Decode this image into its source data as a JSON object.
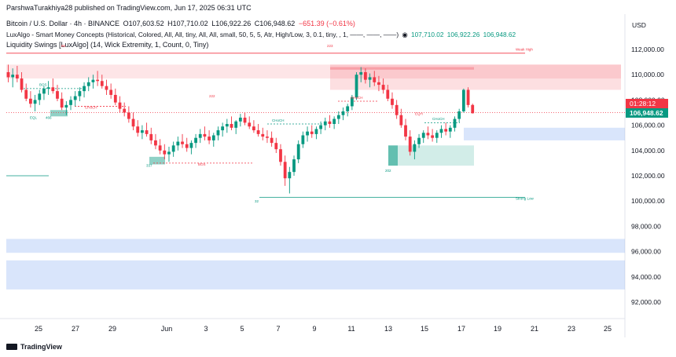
{
  "header": {
    "published": "ParshwaTurakhiya28 published on TradingView.com, Jun 17, 2025 06:31 UTC",
    "symbol": "Bitcoin / U.S. Dollar · 4h · BINANCE",
    "open": "O107,603.52",
    "high": "H107,710.02",
    "low": "L106,922.26",
    "close": "C106,948.62",
    "change": "−651.39 (−0.61%)",
    "indicator1": "LuxAlgo - Smart Money Concepts (Historical, Colored, All, All, tiny, All, All, small, 50, 5, 5, Atr, High/Low, 3, 0.1, tiny, , 1, ——, ——, ——)",
    "indicator1_icon": "eye-off-icon",
    "indicator1_values": [
      "107,710.02",
      "106,922.26",
      "106,948.62"
    ],
    "indicator2": "Liquidity Swings [LuxAlgo] (14, Wick Extremity, 1, Count, 0, Tiny)"
  },
  "price_axis": {
    "currency": "USD",
    "ticks": [
      "112,000.00",
      "110,000.00",
      "108,000.00",
      "106,000.00",
      "104,000.00",
      "102,000.00",
      "100,000.00",
      "98,000.00",
      "96,000.00",
      "94,000.00",
      "92,000.00"
    ],
    "countdown": "01:28:12",
    "last_price": "106,948.62",
    "colors": {
      "countdown": "#f23645",
      "last_price": "#089981"
    }
  },
  "time_axis": {
    "ticks": [
      "25",
      "27",
      "29",
      "Jun",
      "3",
      "5",
      "7",
      "9",
      "11",
      "13",
      "15",
      "17",
      "19",
      "21",
      "23",
      "25"
    ]
  },
  "branding": {
    "logo_text": "TradingView",
    "logo_icon": "tradingview-logo-icon"
  },
  "annotations": [
    {
      "text": "Weak High",
      "color": "#f23645"
    },
    {
      "text": "Strong Low",
      "color": "#089981"
    },
    {
      "text": "BOS",
      "color": "#089981"
    },
    {
      "text": "BOS",
      "color": "#f23645"
    },
    {
      "text": "CHoCH",
      "color": "#f23645"
    },
    {
      "text": "CHoCH",
      "color": "#089981"
    },
    {
      "text": "CHoCH",
      "color": "#f23645"
    },
    {
      "text": "CHoCH",
      "color": "#089981"
    },
    {
      "text": "EQL",
      "color": "#089981"
    },
    {
      "text": "466",
      "color": "#089981"
    },
    {
      "text": "85",
      "color": "#f23645"
    },
    {
      "text": "337",
      "color": "#089981"
    },
    {
      "text": "222",
      "color": "#f23645"
    },
    {
      "text": "223",
      "color": "#f23645"
    },
    {
      "text": "32",
      "color": "#089981"
    },
    {
      "text": "202",
      "color": "#089981"
    },
    {
      "text": "EQH",
      "color": "#f23645"
    }
  ],
  "chart_data": {
    "type": "candlestick",
    "symbol": "BTCUSD",
    "interval": "4h",
    "ylim": [
      90800,
      113200
    ],
    "x_ticks": [
      "25",
      "27",
      "29",
      "Jun",
      "3",
      "5",
      "7",
      "9",
      "11",
      "13",
      "15",
      "17",
      "19",
      "21",
      "23",
      "25"
    ],
    "colors": {
      "up": "#089981",
      "down": "#f23645"
    },
    "candles": [
      [
        110200,
        110800,
        109400,
        109800
      ],
      [
        109800,
        110500,
        109000,
        110000
      ],
      [
        110000,
        110700,
        109400,
        109700
      ],
      [
        109700,
        110200,
        108600,
        108800
      ],
      [
        108800,
        109300,
        107900,
        108100
      ],
      [
        108100,
        108700,
        107400,
        107700
      ],
      [
        107700,
        108400,
        107100,
        108000
      ],
      [
        108000,
        108800,
        107600,
        108500
      ],
      [
        108500,
        109100,
        108000,
        108900
      ],
      [
        108900,
        109500,
        108400,
        109000
      ],
      [
        109000,
        109700,
        108500,
        108700
      ],
      [
        108700,
        109200,
        107900,
        108100
      ],
      [
        108100,
        108600,
        107200,
        107400
      ],
      [
        107400,
        107900,
        106800,
        107600
      ],
      [
        107600,
        108300,
        107200,
        108000
      ],
      [
        108000,
        108700,
        107500,
        108300
      ],
      [
        108300,
        109000,
        107900,
        108700
      ],
      [
        108700,
        109400,
        108200,
        109100
      ],
      [
        109100,
        109800,
        108700,
        109400
      ],
      [
        109400,
        110000,
        108900,
        109600
      ],
      [
        109600,
        110300,
        109100,
        109500
      ],
      [
        109500,
        110000,
        108900,
        109100
      ],
      [
        109100,
        109600,
        108400,
        108800
      ],
      [
        108800,
        109300,
        108100,
        108400
      ],
      [
        108400,
        108900,
        107600,
        107800
      ],
      [
        107800,
        108300,
        107000,
        107300
      ],
      [
        107300,
        107800,
        106700,
        107000
      ],
      [
        107000,
        107500,
        106200,
        106500
      ],
      [
        106500,
        107000,
        105600,
        105900
      ],
      [
        105900,
        106400,
        105100,
        105400
      ],
      [
        105400,
        106000,
        104900,
        105600
      ],
      [
        105600,
        106200,
        105100,
        105300
      ],
      [
        105300,
        105800,
        104500,
        104800
      ],
      [
        104800,
        105300,
        104100,
        104400
      ],
      [
        104400,
        104900,
        103700,
        104000
      ],
      [
        104000,
        104500,
        103300,
        103700
      ],
      [
        103700,
        104300,
        103100,
        103900
      ],
      [
        103900,
        104700,
        103500,
        104400
      ],
      [
        104400,
        105100,
        104000,
        104700
      ],
      [
        104700,
        105300,
        104200,
        104500
      ],
      [
        104500,
        105000,
        103900,
        104200
      ],
      [
        104200,
        104800,
        103700,
        104600
      ],
      [
        104600,
        105300,
        104200,
        105000
      ],
      [
        105000,
        105700,
        104600,
        105300
      ],
      [
        105300,
        105900,
        104800,
        105100
      ],
      [
        105100,
        105600,
        104500,
        104800
      ],
      [
        104800,
        105400,
        104300,
        105200
      ],
      [
        105200,
        105900,
        104800,
        105600
      ],
      [
        105600,
        106200,
        105100,
        105900
      ],
      [
        105900,
        106500,
        105400,
        106100
      ],
      [
        106100,
        106700,
        105600,
        105800
      ],
      [
        105800,
        106400,
        105300,
        106300
      ],
      [
        106300,
        106900,
        105900,
        106600
      ],
      [
        106600,
        107000,
        106000,
        106200
      ],
      [
        106200,
        106700,
        105700,
        105900
      ],
      [
        105900,
        106400,
        105400,
        105600
      ],
      [
        105600,
        106100,
        105100,
        105300
      ],
      [
        105300,
        105800,
        104800,
        105100
      ],
      [
        105100,
        105600,
        104600,
        105000
      ],
      [
        105000,
        105500,
        104300,
        104600
      ],
      [
        104600,
        105000,
        103800,
        104100
      ],
      [
        104100,
        104500,
        102800,
        103100
      ],
      [
        103100,
        103600,
        101200,
        101800
      ],
      [
        101800,
        102700,
        100600,
        102300
      ],
      [
        102300,
        103600,
        102000,
        103300
      ],
      [
        103300,
        104800,
        103000,
        104500
      ],
      [
        104500,
        105500,
        104200,
        105200
      ],
      [
        105200,
        105900,
        104700,
        105500
      ],
      [
        105500,
        106000,
        105000,
        105300
      ],
      [
        105300,
        105900,
        104900,
        105700
      ],
      [
        105700,
        106300,
        105300,
        106000
      ],
      [
        106000,
        106600,
        105600,
        106300
      ],
      [
        106300,
        106800,
        105800,
        106100
      ],
      [
        106100,
        106700,
        105700,
        106500
      ],
      [
        106500,
        107100,
        106100,
        106800
      ],
      [
        106800,
        107400,
        106400,
        107100
      ],
      [
        107100,
        107700,
        106700,
        107500
      ],
      [
        107500,
        108400,
        107200,
        108200
      ],
      [
        108200,
        110200,
        108000,
        110000
      ],
      [
        110000,
        110600,
        109400,
        110200
      ],
      [
        110200,
        110500,
        109300,
        109600
      ],
      [
        109600,
        110100,
        109000,
        109800
      ],
      [
        109800,
        110300,
        109100,
        109400
      ],
      [
        109400,
        109900,
        108700,
        109200
      ],
      [
        109200,
        109700,
        108500,
        108800
      ],
      [
        108800,
        109200,
        107900,
        108100
      ],
      [
        108100,
        108600,
        107300,
        107600
      ],
      [
        107600,
        108000,
        106500,
        106800
      ],
      [
        106800,
        107300,
        105800,
        106000
      ],
      [
        106000,
        106500,
        104800,
        105100
      ],
      [
        105100,
        105600,
        103600,
        103900
      ],
      [
        103900,
        104800,
        103300,
        104500
      ],
      [
        104500,
        105300,
        104200,
        105000
      ],
      [
        105000,
        105600,
        104600,
        105400
      ],
      [
        105400,
        105900,
        104900,
        105200
      ],
      [
        105200,
        105700,
        104700,
        105000
      ],
      [
        105000,
        105600,
        104600,
        105400
      ],
      [
        105400,
        106000,
        105000,
        105700
      ],
      [
        105700,
        106200,
        105200,
        105500
      ],
      [
        105500,
        106000,
        105000,
        105800
      ],
      [
        105800,
        106700,
        105500,
        106500
      ],
      [
        106500,
        107300,
        106200,
        107100
      ],
      [
        107100,
        108900,
        107000,
        108800
      ],
      [
        108800,
        109000,
        107400,
        107600
      ],
      [
        107603.52,
        107710.02,
        106922.26,
        106948.62
      ]
    ]
  }
}
